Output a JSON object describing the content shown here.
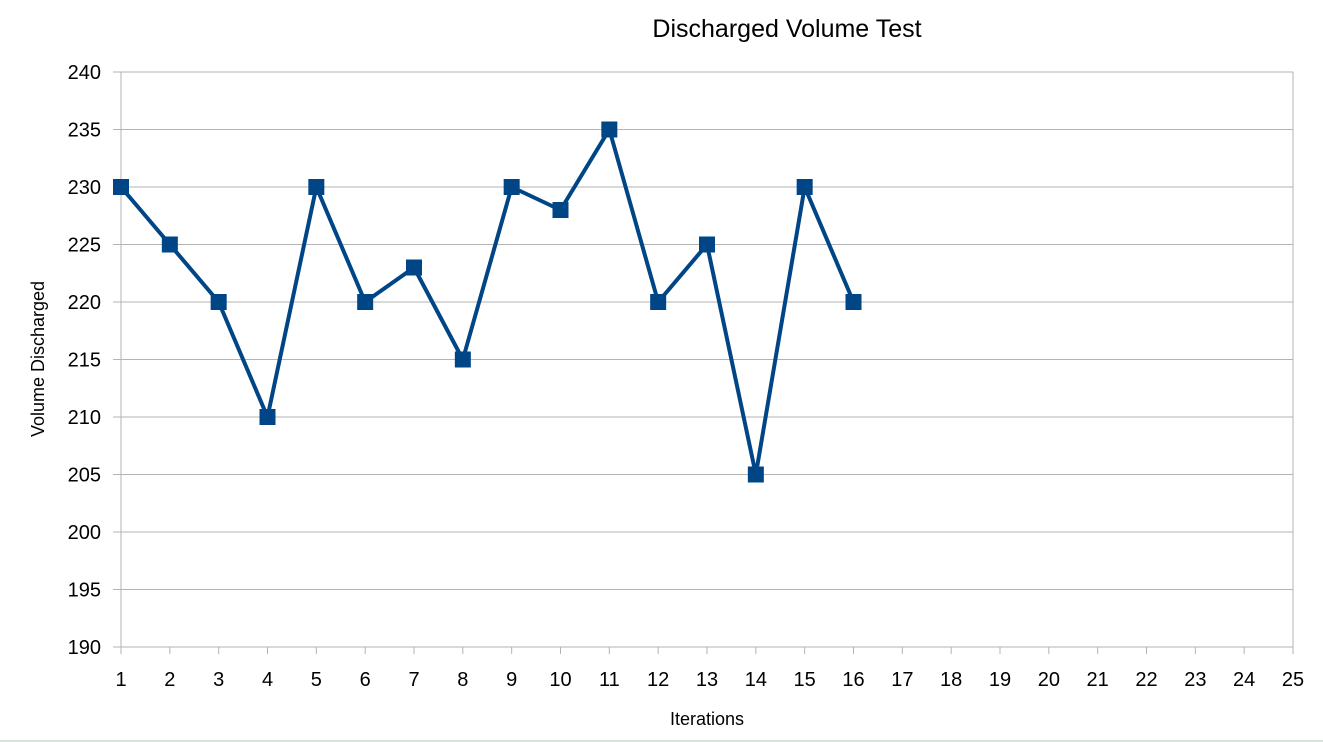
{
  "chart_data": {
    "type": "line",
    "title": "Discharged Volume Test",
    "xlabel": "Iterations",
    "ylabel": "Volume Discharged",
    "x_categories": [
      "1",
      "2",
      "3",
      "4",
      "5",
      "6",
      "7",
      "8",
      "9",
      "10",
      "11",
      "12",
      "13",
      "14",
      "15",
      "16",
      "17",
      "18",
      "19",
      "20",
      "21",
      "22",
      "23",
      "24",
      "25"
    ],
    "ylim": [
      190,
      240
    ],
    "y_ticks": [
      190,
      195,
      200,
      205,
      210,
      215,
      220,
      225,
      230,
      235,
      240
    ],
    "grid": true,
    "legend": "none",
    "marker": "square",
    "series": [
      {
        "x": [
          1,
          2,
          3,
          4,
          5,
          6,
          7,
          8,
          9,
          10,
          11,
          12,
          13,
          14,
          15,
          16
        ],
        "values": [
          230,
          225,
          220,
          210,
          230,
          220,
          223,
          215,
          230,
          228,
          235,
          220,
          225,
          205,
          230,
          220
        ]
      }
    ],
    "colors": {
      "series": "#004586",
      "grid": "#b3b3b3",
      "axis": "#b3b3b3"
    }
  }
}
